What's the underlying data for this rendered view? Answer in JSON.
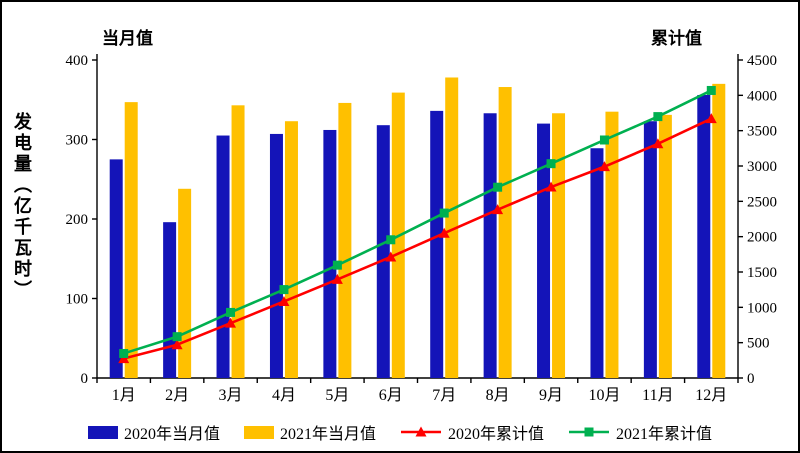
{
  "chart_data": {
    "type": "bar+line",
    "title": "",
    "ylabel": "发电量（亿千瓦时）",
    "categories": [
      "1月",
      "2月",
      "3月",
      "4月",
      "5月",
      "6月",
      "7月",
      "8月",
      "9月",
      "10月",
      "11月",
      "12月"
    ],
    "left_axis": {
      "title": "当月值",
      "min": 0,
      "max": 400,
      "step": 100
    },
    "right_axis": {
      "title": "累计值",
      "min": 0,
      "max": 4500,
      "step": 500
    },
    "grid": false,
    "legend_position": "bottom",
    "bar_series": [
      {
        "name": "2020年当月值",
        "color": "#1414b8",
        "axis": "left",
        "values": [
          275,
          196,
          305,
          307,
          312,
          318,
          336,
          333,
          320,
          289,
          323,
          356
        ]
      },
      {
        "name": "2021年当月值",
        "color": "#ffc000",
        "axis": "left",
        "values": [
          347,
          238,
          343,
          323,
          346,
          359,
          378,
          366,
          333,
          335,
          331,
          370
        ]
      }
    ],
    "line_series": [
      {
        "name": "2020年累计值",
        "color": "#ff0000",
        "marker": "triangle",
        "axis": "right",
        "values": [
          275,
          471,
          776,
          1083,
          1395,
          1713,
          2049,
          2382,
          2702,
          2991,
          3314,
          3670
        ]
      },
      {
        "name": "2021年累计值",
        "color": "#00b050",
        "marker": "square",
        "axis": "right",
        "values": [
          347,
          585,
          928,
          1251,
          1597,
          1956,
          2334,
          2700,
          3033,
          3368,
          3699,
          4069
        ]
      }
    ],
    "colors": {
      "axis": "#000000",
      "text": "#000000",
      "background": "#ffffff"
    }
  }
}
